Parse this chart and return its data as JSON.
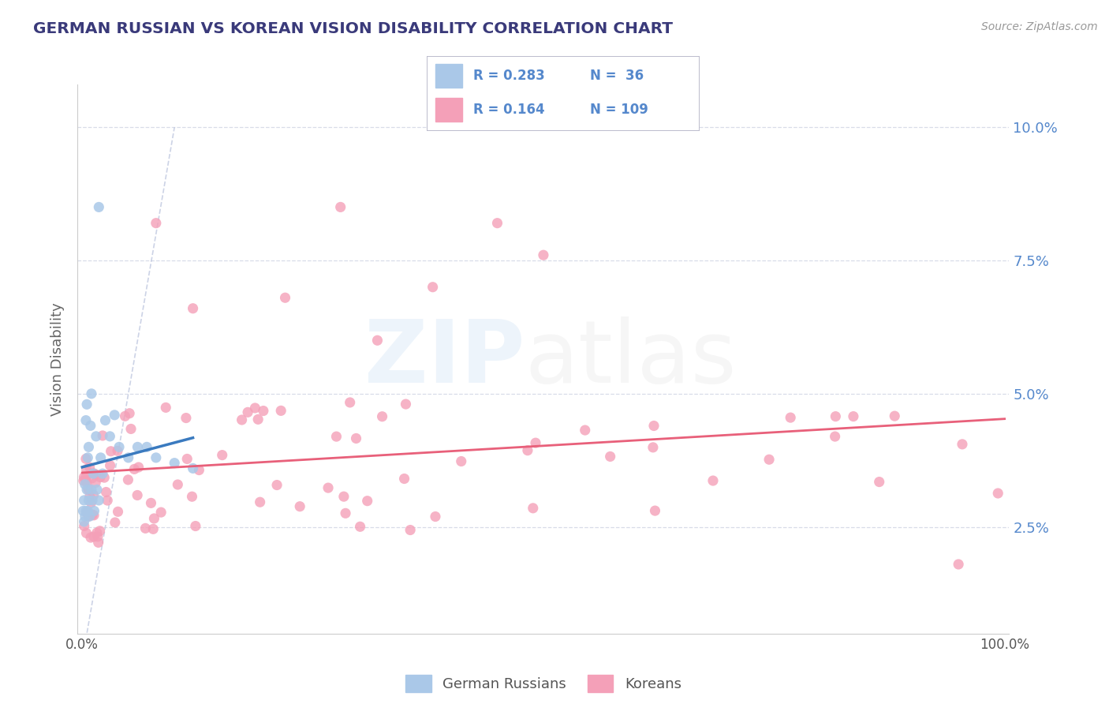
{
  "title": "GERMAN RUSSIAN VS KOREAN VISION DISABILITY CORRELATION CHART",
  "source": "Source: ZipAtlas.com",
  "ylabel": "Vision Disability",
  "title_color": "#3a3a7a",
  "source_color": "#999999",
  "background_color": "#ffffff",
  "blue_color": "#aac8e8",
  "pink_color": "#f4a0b8",
  "blue_line_color": "#3a7abf",
  "pink_line_color": "#e8607a",
  "diag_color": "#c0c8e0",
  "legend_label1": "German Russians",
  "legend_label2": "Koreans",
  "blue_r": 0.283,
  "pink_r": 0.164,
  "blue_n": 36,
  "pink_n": 109,
  "ytick_color": "#5588cc",
  "xtick_color": "#555555",
  "grid_color": "#d8dce8",
  "ylim_min": 0.005,
  "ylim_max": 0.108,
  "xlim_min": -0.005,
  "xlim_max": 1.005,
  "yticks": [
    0.025,
    0.05,
    0.075,
    0.1
  ],
  "ytick_labels": [
    "2.5%",
    "5.0%",
    "7.5%",
    "10.0%"
  ]
}
